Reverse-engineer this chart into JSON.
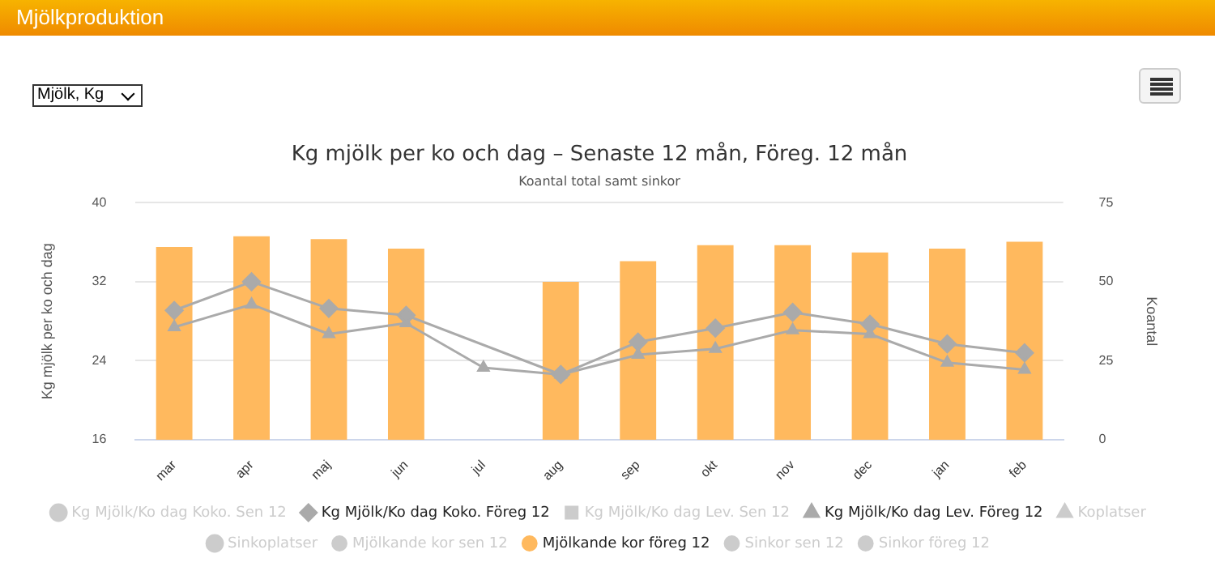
{
  "chart_data": {
    "type": "bar",
    "title": "Kg mjölk per ko och dag – Senaste 12 mån, Föreg. 12 mån",
    "subtitle": "Koantal total samt sinkor",
    "ylabel": "Kg mjölk per ko och dag",
    "y2label": "Koantal",
    "annotations": [
      "Mjölkproduktion",
      "Mjölk, Kg"
    ],
    "categories": [
      "mar",
      "apr",
      "maj",
      "jun",
      "jul",
      "aug",
      "sep",
      "okt",
      "nov",
      "dec",
      "jan",
      "feb"
    ],
    "ylim": [
      16,
      40
    ],
    "yticks": [
      16,
      24,
      32,
      40
    ],
    "y2lim": [
      0,
      75
    ],
    "y2ticks": [
      0,
      25,
      50,
      75
    ],
    "grid": "y",
    "legend": "bottom",
    "series": [
      {
        "name": "Kg Mjölk/Ko dag Koko. Sen 12",
        "type": "line",
        "marker": "circle",
        "color": "#cccccc",
        "values": [
          null,
          null,
          null,
          null,
          null,
          null,
          null,
          null,
          null,
          null,
          null,
          null
        ]
      },
      {
        "name": "Kg Mjölk/Ko dag Koko. Föreg 12",
        "type": "line",
        "marker": "diamond",
        "color": "#aaaaaa",
        "values": [
          29.1,
          32.0,
          29.3,
          28.6,
          null,
          22.6,
          25.9,
          27.3,
          28.9,
          27.7,
          25.7,
          24.8
        ]
      },
      {
        "name": "Kg Mjölk/Ko dag Lev. Sen 12",
        "type": "line",
        "marker": "square",
        "color": "#cccccc",
        "values": [
          null,
          null,
          null,
          null,
          null,
          null,
          null,
          null,
          null,
          null,
          null,
          null
        ]
      },
      {
        "name": "Kg Mjölk/Ko dag Lev. Föreg 12",
        "type": "line",
        "marker": "triangle",
        "color": "#aaaaaa",
        "values": [
          27.4,
          29.7,
          26.7,
          27.8,
          23.3,
          22.6,
          24.6,
          25.2,
          27.1,
          26.7,
          23.8,
          23.1
        ]
      },
      {
        "name": "Mjölkande kor sen 12",
        "axis": "y2",
        "color": "#cccccc",
        "values": [
          null,
          null,
          null,
          null,
          null,
          null,
          null,
          null,
          null,
          null,
          null,
          null
        ]
      },
      {
        "name": "Mjölkande kor föreg 12",
        "axis": "y2",
        "color": "#ffb95e",
        "values": [
          61,
          64.4,
          63.5,
          60.5,
          null,
          50,
          56.5,
          61.6,
          61.6,
          59.3,
          60.5,
          62.7
        ]
      },
      {
        "name": "Sinkor sen 12",
        "axis": "y2",
        "color": "#cccccc",
        "values": [
          null,
          null,
          null,
          null,
          null,
          null,
          null,
          null,
          null,
          null,
          null,
          null
        ]
      },
      {
        "name": "Sinkor föreg 12",
        "axis": "y2",
        "color": "#cccccc",
        "values": [
          null,
          null,
          null,
          null,
          null,
          null,
          null,
          null,
          null,
          null,
          null,
          null
        ]
      },
      {
        "name": "Koplatser",
        "type": "line",
        "axis": "y2",
        "marker": "triangle",
        "color": "#cccccc",
        "values": [
          null,
          null,
          null,
          null,
          null,
          null,
          null,
          null,
          null,
          null,
          null,
          null
        ]
      },
      {
        "name": "Sinkoplatser",
        "type": "line",
        "axis": "y2",
        "marker": "circle",
        "color": "#cccccc",
        "values": [
          null,
          null,
          null,
          null,
          null,
          null,
          null,
          null,
          null,
          null,
          null,
          null
        ]
      }
    ]
  }
}
